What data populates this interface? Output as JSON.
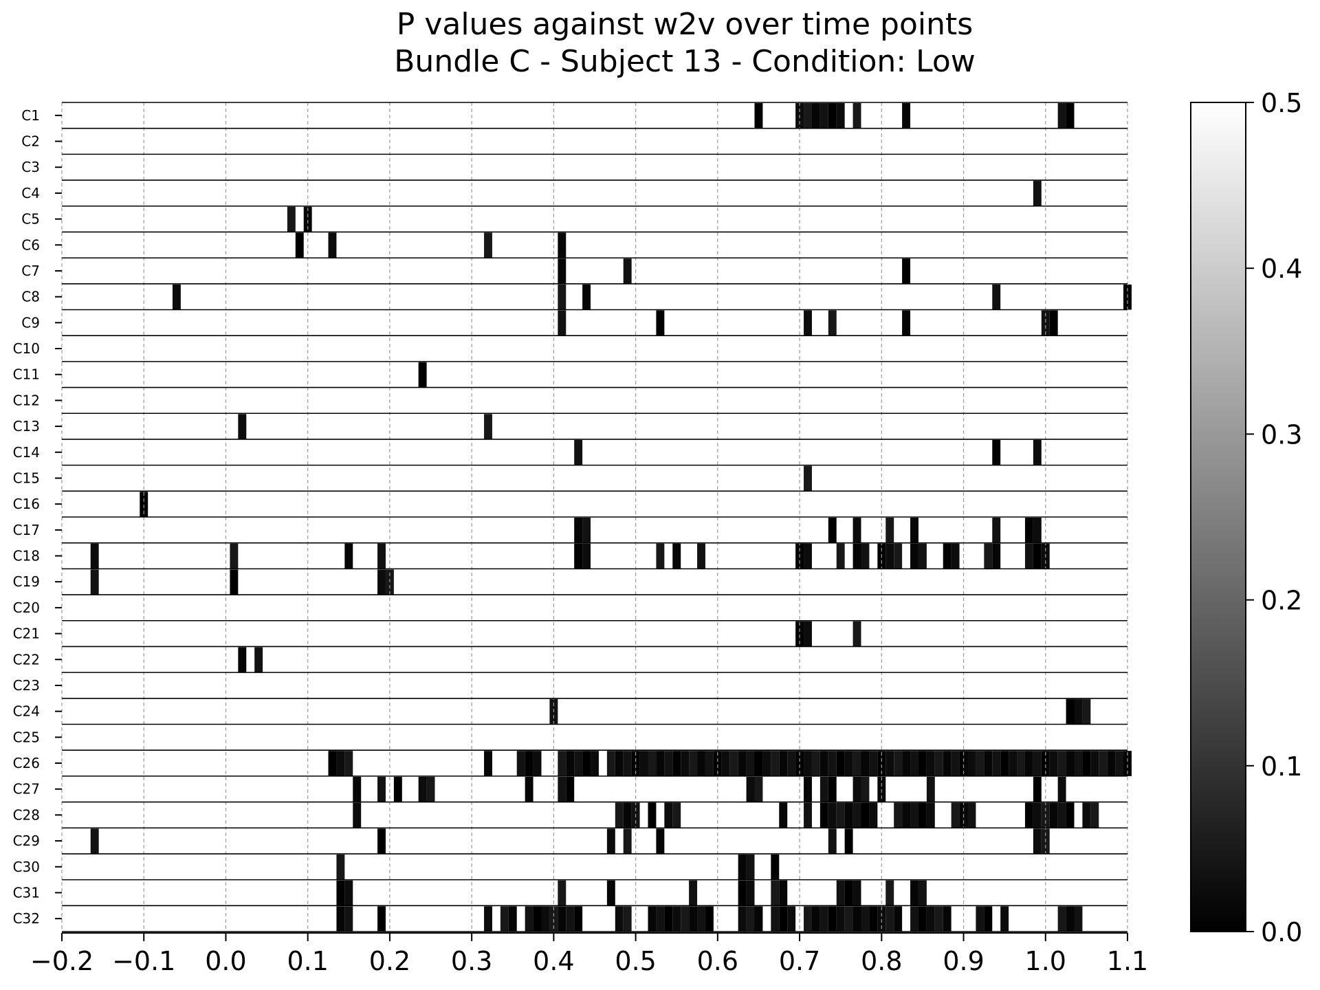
{
  "chart_data": {
    "type": "heatmap",
    "title": "P values against w2v over time points",
    "subtitle": "Bundle C - Subject 13 - Condition: Low",
    "xlabel": "",
    "ylabel": "",
    "xlim": [
      -0.2,
      1.1
    ],
    "x_ticks": [
      "−0.2",
      "−0.1",
      "0.0",
      "0.1",
      "0.2",
      "0.3",
      "0.4",
      "0.5",
      "0.6",
      "0.7",
      "0.8",
      "0.9",
      "1.0",
      "1.1"
    ],
    "x_tick_values": [
      -0.2,
      -0.1,
      0.0,
      0.1,
      0.2,
      0.3,
      0.4,
      0.5,
      0.6,
      0.7,
      0.8,
      0.9,
      1.0,
      1.1
    ],
    "grid": "vertical dashed",
    "colormap": "gray",
    "colorbar": {
      "range": [
        0.0,
        0.5
      ],
      "ticks": [
        "0.0",
        "0.1",
        "0.2",
        "0.3",
        "0.4",
        "0.5"
      ],
      "tick_values": [
        0.0,
        0.1,
        0.2,
        0.3,
        0.4,
        0.5
      ],
      "placement": "right"
    },
    "bin_width": 0.01,
    "default_p": 0.5,
    "rows": [
      {
        "name": "C1",
        "dark_bins": [
          0.65,
          0.7,
          0.71,
          0.72,
          0.73,
          0.74,
          0.75,
          0.77,
          0.83,
          1.02,
          1.03
        ]
      },
      {
        "name": "C2",
        "dark_bins": []
      },
      {
        "name": "C3",
        "dark_bins": []
      },
      {
        "name": "C4",
        "dark_bins": [
          0.99
        ]
      },
      {
        "name": "C5",
        "dark_bins": [
          0.08,
          0.1
        ]
      },
      {
        "name": "C6",
        "dark_bins": [
          0.09,
          0.13,
          0.32,
          0.41
        ]
      },
      {
        "name": "C7",
        "dark_bins": [
          0.41,
          0.49,
          0.83
        ]
      },
      {
        "name": "C8",
        "dark_bins": [
          -0.06,
          0.41,
          0.44,
          0.94,
          1.1
        ]
      },
      {
        "name": "C9",
        "dark_bins": [
          0.41,
          0.53,
          0.71,
          0.74,
          0.83,
          1.0,
          1.01
        ]
      },
      {
        "name": "C10",
        "dark_bins": []
      },
      {
        "name": "C11",
        "dark_bins": [
          0.24
        ]
      },
      {
        "name": "C12",
        "dark_bins": []
      },
      {
        "name": "C13",
        "dark_bins": [
          0.02,
          0.32
        ]
      },
      {
        "name": "C14",
        "dark_bins": [
          0.43,
          0.94,
          0.99
        ]
      },
      {
        "name": "C15",
        "dark_bins": [
          0.71
        ]
      },
      {
        "name": "C16",
        "dark_bins": [
          -0.1
        ]
      },
      {
        "name": "C17",
        "dark_bins": [
          0.43,
          0.44,
          0.74,
          0.77,
          0.81,
          0.84,
          0.94,
          0.98,
          0.99
        ]
      },
      {
        "name": "C18",
        "dark_bins": [
          -0.16,
          0.01,
          0.15,
          0.19,
          0.43,
          0.44,
          0.53,
          0.55,
          0.58,
          0.7,
          0.71,
          0.75,
          0.77,
          0.78,
          0.8,
          0.81,
          0.82,
          0.84,
          0.85,
          0.88,
          0.89,
          0.93,
          0.94,
          0.98,
          0.99,
          1.0
        ]
      },
      {
        "name": "C19",
        "dark_bins": [
          -0.16,
          0.01,
          0.19,
          0.2
        ]
      },
      {
        "name": "C20",
        "dark_bins": []
      },
      {
        "name": "C21",
        "dark_bins": [
          0.7,
          0.71,
          0.77
        ]
      },
      {
        "name": "C22",
        "dark_bins": [
          0.02,
          0.04
        ]
      },
      {
        "name": "C23",
        "dark_bins": []
      },
      {
        "name": "C24",
        "dark_bins": [
          0.4,
          1.03,
          1.04,
          1.05
        ]
      },
      {
        "name": "C25",
        "dark_bins": []
      },
      {
        "name": "C26",
        "dark_bins": [
          0.13,
          0.14,
          0.15,
          0.32,
          0.36,
          0.37,
          0.38,
          0.41,
          0.42,
          0.43,
          0.44,
          0.45,
          0.47,
          0.48,
          0.49,
          0.5,
          0.51,
          0.52,
          0.53,
          0.54,
          0.55,
          0.56,
          0.57,
          0.58,
          0.59,
          0.6,
          0.61,
          0.62,
          0.63,
          0.64,
          0.65,
          0.66,
          0.67,
          0.68,
          0.69,
          0.7,
          0.71,
          0.72,
          0.73,
          0.74,
          0.75,
          0.76,
          0.77,
          0.78,
          0.79,
          0.8,
          0.81,
          0.82,
          0.83,
          0.84,
          0.85,
          0.86,
          0.87,
          0.88,
          0.89,
          0.9,
          0.91,
          0.92,
          0.93,
          0.94,
          0.95,
          0.96,
          0.97,
          0.98,
          0.99,
          1.0,
          1.01,
          1.02,
          1.03,
          1.04,
          1.05,
          1.06,
          1.07,
          1.08,
          1.09,
          1.1
        ]
      },
      {
        "name": "C27",
        "dark_bins": [
          0.16,
          0.19,
          0.21,
          0.24,
          0.25,
          0.37,
          0.41,
          0.42,
          0.64,
          0.65,
          0.71,
          0.73,
          0.74,
          0.77,
          0.78,
          0.8,
          0.86,
          0.99,
          1.02
        ]
      },
      {
        "name": "C28",
        "dark_bins": [
          0.16,
          0.48,
          0.49,
          0.5,
          0.52,
          0.54,
          0.55,
          0.68,
          0.71,
          0.73,
          0.74,
          0.75,
          0.76,
          0.77,
          0.78,
          0.79,
          0.82,
          0.83,
          0.84,
          0.85,
          0.86,
          0.89,
          0.9,
          0.91,
          0.98,
          0.99,
          1.0,
          1.01,
          1.02,
          1.03,
          1.05,
          1.06
        ]
      },
      {
        "name": "C29",
        "dark_bins": [
          -0.16,
          0.19,
          0.47,
          0.49,
          0.53,
          0.74,
          0.76,
          0.99,
          1.0
        ]
      },
      {
        "name": "C30",
        "dark_bins": [
          0.14,
          0.63,
          0.64,
          0.67
        ]
      },
      {
        "name": "C31",
        "dark_bins": [
          0.14,
          0.15,
          0.41,
          0.47,
          0.57,
          0.63,
          0.64,
          0.67,
          0.68,
          0.75,
          0.76,
          0.77,
          0.81,
          0.84,
          0.85
        ]
      },
      {
        "name": "C32",
        "dark_bins": [
          0.14,
          0.15,
          0.19,
          0.32,
          0.34,
          0.35,
          0.37,
          0.38,
          0.39,
          0.4,
          0.41,
          0.42,
          0.43,
          0.48,
          0.49,
          0.52,
          0.53,
          0.54,
          0.55,
          0.56,
          0.57,
          0.58,
          0.59,
          0.63,
          0.64,
          0.65,
          0.67,
          0.68,
          0.69,
          0.71,
          0.72,
          0.73,
          0.74,
          0.75,
          0.76,
          0.77,
          0.78,
          0.79,
          0.8,
          0.81,
          0.82,
          0.84,
          0.85,
          0.86,
          0.87,
          0.88,
          0.92,
          0.93,
          0.95,
          1.02,
          1.03,
          1.04
        ]
      }
    ]
  }
}
